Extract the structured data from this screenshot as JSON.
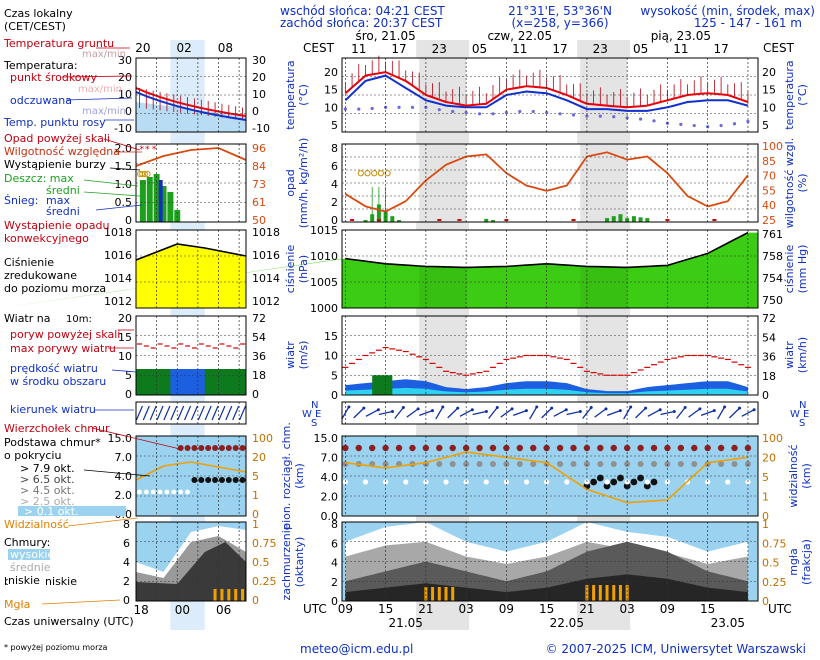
{
  "header": {
    "sunrise": "wschód słońca: 04:21 CEST",
    "sunset": "zachód słońca: 20:37 CEST",
    "coords": "21°31'E, 53°36'N",
    "grid": "(x=258, y=366)",
    "elev_title": "wysokość (min, środek, max)",
    "elev_values": "125 - 147 - 161 m"
  },
  "legend_panel": {
    "local_time": "Czas lokalny",
    "local_time_2": "(CET/CEST)",
    "local_ticks": [
      "20",
      "02",
      "08"
    ],
    "utc_ticks": [
      "18",
      "00",
      "06"
    ],
    "utc_label": "Czas uniwersalny (UTC)",
    "footnote": "* powyżej poziomu morza",
    "temp": {
      "t1": "Temperatura gruntu",
      "t2": "max/min",
      "t3": "Temperatura:",
      "t4": "punkt środkowy",
      "t5": "max/min",
      "t6": "odczuwana",
      "t7": "max/min",
      "t8": "Temp. punktu rosy",
      "ticks": [
        "30",
        "20",
        "10",
        "0",
        "-10"
      ]
    },
    "precip": {
      "p1": "Opad powyżej skali",
      "p2": "Wilgotność względna",
      "p3": "Wystąpienie burzy",
      "p4": "Deszcz: max",
      "p5": "średni",
      "p6": "Śnieg:",
      "p7": "max",
      "p8": "średni",
      "p9": "Wystąpienie opadu",
      "p10": "konwekcyjnego",
      "ticks_left": [
        "2.0",
        "1.5",
        "1.0",
        "0.5",
        "0"
      ],
      "ticks_right": [
        "96",
        "84",
        "73",
        "61",
        "50"
      ]
    },
    "pressure": {
      "l1": "Ciśnienie",
      "l2": "zredukowane",
      "l3": "do poziomu morza",
      "ticks_left": [
        "1018",
        "1016",
        "1014",
        "1012"
      ],
      "ticks_right": [
        "1018",
        "1016",
        "1014",
        "1012"
      ]
    },
    "wind": {
      "title": "Wiatr na",
      "height": "10m:",
      "l1": "poryw powyżej skali",
      "l2": "max porywy wiatru",
      "l3": "prędkość wiatru",
      "l4": "w środku obszaru",
      "ticks_left": [
        "20",
        "15",
        "10",
        "5",
        "0"
      ],
      "ticks_right": [
        "72",
        "54",
        "36",
        "18",
        "0"
      ]
    },
    "direction": {
      "l1": "kierunek wiatru"
    },
    "cloudbase": {
      "l1": "Wierzchołek chmur",
      "l2": "Podstawa chmur*",
      "l3": "o pokryciu",
      "l4": "> 7.9 okt.",
      "l5": "> 6.5 okt.",
      "l6": "> 4.5 okt.",
      "l7": "> 2.5 okt.",
      "l8": "> 0.1 okt.",
      "l9": "Widzialność",
      "ticks_left": [
        "15.0",
        "7.0",
        "4.0",
        "2.0",
        "0.0"
      ],
      "ticks_right": [
        "100",
        "20",
        "5",
        "1",
        "0"
      ]
    },
    "clouds": {
      "l1": "Chmury:",
      "l2": "wysokie",
      "l3": "średnie",
      "l4": "niskie",
      "l5": "bardzo niskie",
      "l6": "Mgła",
      "ticks_left": [
        "8",
        "6",
        "4",
        "2",
        "0"
      ],
      "ticks_right": [
        "1",
        "0.75",
        "0.5",
        "0.25",
        "0"
      ]
    }
  },
  "axis_labels": {
    "cest": "CEST",
    "utc": "UTC",
    "local_hours": [
      "11",
      "17",
      "23",
      "05",
      "11",
      "17",
      "23",
      "05",
      "11",
      "17"
    ],
    "utc_hours": [
      "09",
      "15",
      "21",
      "03",
      "09",
      "15",
      "21",
      "03",
      "09",
      "15"
    ],
    "top_days": [
      "śro, 21.05",
      "czw, 22.05",
      "pią, 23.05"
    ],
    "bottom_days": [
      "21.05",
      "22.05",
      "23.05"
    ],
    "p1_left": [
      "temperatura",
      "(°C)"
    ],
    "p1_right": [
      "temperatura",
      "(°C)"
    ],
    "p2_left": [
      "opad",
      "(mm/h, kg/m²/h)"
    ],
    "p2_right": [
      "wilgotność wzgl.",
      "(%)"
    ],
    "p3_left": [
      "ciśnienie",
      "(hPa)"
    ],
    "p3_right": [
      "ciśnienie",
      "(mm Hg)"
    ],
    "p4_left": [
      "wiatr",
      "(m/s)"
    ],
    "p4_right": [
      "wiatr",
      "(km/h)"
    ],
    "p6_left": [
      "pion. rozciągł. chm.",
      "(km)"
    ],
    "p6_right": [
      "widzialność",
      "(km)"
    ],
    "p7_left": [
      "zachmurzenie",
      "(oktanty)"
    ],
    "p7_right": [
      "mgła",
      "(frakcja)"
    ],
    "compass": [
      "N",
      "W",
      "E",
      "S"
    ]
  },
  "footer": {
    "email": "meteo@icm.edu.pl",
    "copyright": "© 2007-2025 ICM, Uniwersytet Warszawski"
  },
  "colors": {
    "temp": "#e8000c",
    "feels": "#0f2fcf",
    "dew": "#6b6bd8",
    "humidity": "#d84a10",
    "rain": "#1ea01e",
    "pressure_fill": "#3ccc14",
    "pressure_fill_left": "#ffff00",
    "wind_fill": "#1c5fe0",
    "wind_light": "#2fd0f0",
    "wind_green": "#0d7a1d",
    "gust": "#d80000",
    "visibility": "#f0a000",
    "sky": "#9ad2f0",
    "night": "#e4e4e4"
  },
  "chart_data": [
    {
      "type": "line",
      "title": "temperatura",
      "x_unit": "hour from 21.05 09 UTC",
      "ylim": [
        3,
        24
      ],
      "x": [
        0,
        3,
        6,
        9,
        12,
        15,
        18,
        21,
        24,
        27,
        30,
        33,
        36,
        39,
        42,
        45,
        48,
        51,
        54,
        57,
        60
      ],
      "series": [
        {
          "name": "punkt środkowy",
          "values": [
            14,
            19,
            20,
            17.5,
            13.5,
            11.5,
            10.5,
            11,
            15,
            16,
            15.5,
            13.5,
            11,
            10.5,
            10,
            10.5,
            12,
            13.5,
            14,
            13.5,
            11.5
          ]
        },
        {
          "name": "odczuwana",
          "values": [
            12,
            17.5,
            19,
            15.5,
            12,
            10.5,
            10,
            10,
            13.5,
            14.5,
            14,
            12,
            9.5,
            9.5,
            9,
            9,
            10,
            11.5,
            12,
            12,
            10.5
          ]
        },
        {
          "name": "Temp. punktu rosy",
          "values": [
            9.5,
            9.5,
            10,
            10,
            10,
            9,
            8.5,
            8,
            8.5,
            9,
            8.5,
            8,
            7.5,
            7.5,
            7,
            6.5,
            5.5,
            5,
            4.5,
            5,
            6
          ]
        }
      ]
    },
    {
      "type": "bar",
      "title": "opad",
      "ylim_left": [
        0,
        2.0
      ],
      "ylim_right": [
        25,
        100
      ],
      "humidity": {
        "x": [
          0,
          3,
          6,
          9,
          12,
          15,
          18,
          21,
          24,
          27,
          30,
          33,
          36,
          39,
          42,
          45,
          48,
          51,
          54,
          57,
          60
        ],
        "values": [
          52,
          40,
          35,
          45,
          65,
          80,
          88,
          90,
          72,
          60,
          55,
          60,
          88,
          92,
          85,
          88,
          72,
          50,
          40,
          45,
          70
        ]
      },
      "rain": {
        "x": [
          3,
          4,
          5,
          6,
          7,
          8,
          21,
          22,
          39,
          40,
          41,
          42,
          43,
          44,
          45
        ],
        "values": [
          0.05,
          0.2,
          0.45,
          0.3,
          0.15,
          0.05,
          0.08,
          0.05,
          0.1,
          0.15,
          0.2,
          0.1,
          0.15,
          0.12,
          0.1
        ]
      }
    },
    {
      "type": "area",
      "title": "ciśnienie",
      "ylim": [
        1000,
        1015
      ],
      "x": [
        0,
        6,
        12,
        18,
        24,
        30,
        36,
        42,
        48,
        54,
        60
      ],
      "values": [
        1009.5,
        1008.5,
        1008,
        1007.8,
        1008,
        1008.5,
        1008,
        1007.8,
        1008.2,
        1010.5,
        1014.5
      ]
    },
    {
      "type": "area",
      "title": "wiatr",
      "ylim": [
        0,
        20
      ],
      "x": [
        0,
        3,
        6,
        9,
        12,
        15,
        18,
        21,
        24,
        27,
        30,
        33,
        36,
        39,
        42,
        45,
        48,
        51,
        54,
        57,
        60
      ],
      "series": [
        {
          "name": "prędkość wiatru",
          "values": [
            2.5,
            3,
            3.5,
            4,
            3.5,
            2,
            1.5,
            2,
            3,
            3.5,
            3.5,
            3,
            1.5,
            1,
            1,
            2,
            2.5,
            3,
            3.5,
            3.5,
            2
          ]
        },
        {
          "name": "max porywy wiatru",
          "values": [
            7,
            10,
            12,
            11,
            9,
            6,
            5,
            6,
            9,
            10,
            10,
            9,
            6,
            5,
            5,
            7,
            9,
            10,
            10,
            9,
            7
          ]
        }
      ]
    },
    {
      "type": "line",
      "title": "pion. rozciągł. chm.",
      "ylim": [
        0,
        15
      ],
      "x": [
        0,
        6,
        12,
        18,
        24,
        30,
        36,
        42,
        48,
        54,
        60
      ],
      "visibility": [
        10,
        9,
        10,
        12,
        11,
        10,
        5,
        2.5,
        3,
        10,
        11
      ]
    },
    {
      "type": "area",
      "title": "zachmurzenie",
      "ylim": [
        0,
        8
      ],
      "x": [
        0,
        6,
        12,
        18,
        24,
        30,
        36,
        42,
        48,
        54,
        60
      ],
      "series": [
        {
          "name": "wysokie",
          "values": [
            6,
            7.5,
            8,
            6,
            5,
            6,
            8,
            7,
            6.5,
            5,
            6
          ]
        },
        {
          "name": "niskie",
          "values": [
            2,
            3,
            4,
            3,
            2,
            3,
            5,
            6,
            5,
            3,
            2
          ]
        }
      ]
    }
  ]
}
